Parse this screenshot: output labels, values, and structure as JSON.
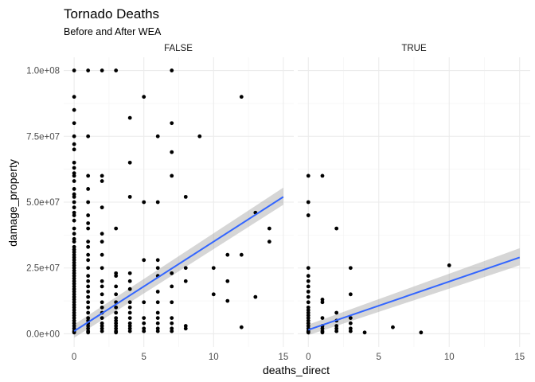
{
  "chart_data": {
    "type": "scatter",
    "title": "Tornado Deaths",
    "subtitle": "Before and After WEA",
    "xlabel": "deaths_direct",
    "ylabel": "damage_property",
    "xlim": [
      -0.75,
      15.75
    ],
    "ylim": [
      -5000000,
      105000000
    ],
    "x_ticks": [
      0,
      5,
      10,
      15
    ],
    "x_tick_labels": [
      "0",
      "5",
      "10",
      "15"
    ],
    "y_ticks": [
      0,
      25000000,
      50000000,
      75000000,
      100000000
    ],
    "y_tick_labels": [
      "0.0e+00",
      "2.5e+07",
      "5.0e+07",
      "7.5e+07",
      "1.0e+08"
    ],
    "facets": [
      {
        "label": "FALSE",
        "fit": {
          "x": [
            0,
            15
          ],
          "y": [
            1000000,
            52000000
          ],
          "se_low": [
            -1500000,
            49000000
          ],
          "se_high": [
            3500000,
            55500000
          ]
        },
        "points": [
          [
            0,
            100000000
          ],
          [
            0,
            90000000
          ],
          [
            0,
            85000000
          ],
          [
            0,
            80000000
          ],
          [
            0,
            75000000
          ],
          [
            0,
            72000000
          ],
          [
            0,
            70000000
          ],
          [
            0,
            65000000
          ],
          [
            0,
            63000000
          ],
          [
            0,
            61000000
          ],
          [
            0,
            60000000
          ],
          [
            0,
            58000000
          ],
          [
            0,
            55000000
          ],
          [
            0,
            53000000
          ],
          [
            0,
            52000000
          ],
          [
            0,
            50000000
          ],
          [
            0,
            48000000
          ],
          [
            0,
            46000000
          ],
          [
            0,
            45000000
          ],
          [
            0,
            43000000
          ],
          [
            0,
            40000000
          ],
          [
            0,
            38000000
          ],
          [
            0,
            36000000
          ],
          [
            0,
            35000000
          ],
          [
            0,
            33000000
          ],
          [
            0,
            32000000
          ],
          [
            0,
            31000000
          ],
          [
            0,
            30000000
          ],
          [
            0,
            29000000
          ],
          [
            0,
            28000000
          ],
          [
            0,
            27000000
          ],
          [
            0,
            26000000
          ],
          [
            0,
            25000000
          ],
          [
            0,
            24000000
          ],
          [
            0,
            23000000
          ],
          [
            0,
            22000000
          ],
          [
            0,
            21000000
          ],
          [
            0,
            20000000
          ],
          [
            0,
            19000000
          ],
          [
            0,
            18000000
          ],
          [
            0,
            17000000
          ],
          [
            0,
            16000000
          ],
          [
            0,
            15000000
          ],
          [
            0,
            14000000
          ],
          [
            0,
            13000000
          ],
          [
            0,
            12000000
          ],
          [
            0,
            11000000
          ],
          [
            0,
            10000000
          ],
          [
            0,
            9000000
          ],
          [
            0,
            8000000
          ],
          [
            0,
            7000000
          ],
          [
            0,
            6000000
          ],
          [
            0,
            5000000
          ],
          [
            0,
            4000000
          ],
          [
            0,
            3000000
          ],
          [
            0,
            2000000
          ],
          [
            0,
            1000000
          ],
          [
            0,
            500000
          ],
          [
            1,
            100000000
          ],
          [
            1,
            75000000
          ],
          [
            1,
            60000000
          ],
          [
            1,
            55000000
          ],
          [
            1,
            50000000
          ],
          [
            1,
            45000000
          ],
          [
            1,
            42000000
          ],
          [
            1,
            40000000
          ],
          [
            1,
            35000000
          ],
          [
            1,
            33000000
          ],
          [
            1,
            30000000
          ],
          [
            1,
            28000000
          ],
          [
            1,
            25000000
          ],
          [
            1,
            22000000
          ],
          [
            1,
            20000000
          ],
          [
            1,
            18000000
          ],
          [
            1,
            16000000
          ],
          [
            1,
            14000000
          ],
          [
            1,
            12000000
          ],
          [
            1,
            10000000
          ],
          [
            1,
            8000000
          ],
          [
            1,
            6000000
          ],
          [
            1,
            5000000
          ],
          [
            1,
            4000000
          ],
          [
            1,
            3000000
          ],
          [
            1,
            2000000
          ],
          [
            1,
            1000000
          ],
          [
            1,
            500000
          ],
          [
            2,
            100000000
          ],
          [
            2,
            60000000
          ],
          [
            2,
            58000000
          ],
          [
            2,
            48000000
          ],
          [
            2,
            38000000
          ],
          [
            2,
            35000000
          ],
          [
            2,
            30000000
          ],
          [
            2,
            25000000
          ],
          [
            2,
            20000000
          ],
          [
            2,
            18000000
          ],
          [
            2,
            15000000
          ],
          [
            2,
            12000000
          ],
          [
            2,
            10000000
          ],
          [
            2,
            8000000
          ],
          [
            2,
            6000000
          ],
          [
            2,
            4000000
          ],
          [
            2,
            3000000
          ],
          [
            2,
            2000000
          ],
          [
            2,
            1000000
          ],
          [
            3,
            100000000
          ],
          [
            3,
            40000000
          ],
          [
            3,
            23000000
          ],
          [
            3,
            22000000
          ],
          [
            3,
            18000000
          ],
          [
            3,
            15000000
          ],
          [
            3,
            12000000
          ],
          [
            3,
            10000000
          ],
          [
            3,
            8000000
          ],
          [
            3,
            6000000
          ],
          [
            3,
            5000000
          ],
          [
            3,
            4000000
          ],
          [
            3,
            3000000
          ],
          [
            3,
            2000000
          ],
          [
            3,
            1000000
          ],
          [
            3,
            500000
          ],
          [
            4,
            82000000
          ],
          [
            4,
            65000000
          ],
          [
            4,
            52000000
          ],
          [
            4,
            23000000
          ],
          [
            4,
            20000000
          ],
          [
            4,
            17000000
          ],
          [
            4,
            12000000
          ],
          [
            4,
            10000000
          ],
          [
            4,
            8000000
          ],
          [
            4,
            6000000
          ],
          [
            4,
            4000000
          ],
          [
            4,
            3000000
          ],
          [
            4,
            2000000
          ],
          [
            4,
            1000000
          ],
          [
            5,
            90000000
          ],
          [
            5,
            50000000
          ],
          [
            5,
            28000000
          ],
          [
            5,
            12000000
          ],
          [
            5,
            6000000
          ],
          [
            5,
            4000000
          ],
          [
            5,
            2000000
          ],
          [
            5,
            1000000
          ],
          [
            6,
            75000000
          ],
          [
            6,
            50000000
          ],
          [
            6,
            28000000
          ],
          [
            6,
            25000000
          ],
          [
            6,
            22000000
          ],
          [
            6,
            16000000
          ],
          [
            6,
            12000000
          ],
          [
            6,
            8000000
          ],
          [
            6,
            6000000
          ],
          [
            6,
            4000000
          ],
          [
            6,
            2000000
          ],
          [
            6,
            1000000
          ],
          [
            7,
            100000000
          ],
          [
            7,
            80000000
          ],
          [
            7,
            69000000
          ],
          [
            7,
            60000000
          ],
          [
            7,
            23000000
          ],
          [
            7,
            18000000
          ],
          [
            7,
            12000000
          ],
          [
            7,
            6000000
          ],
          [
            7,
            4000000
          ],
          [
            7,
            2000000
          ],
          [
            7,
            1000000
          ],
          [
            8,
            52000000
          ],
          [
            8,
            25000000
          ],
          [
            8,
            20000000
          ],
          [
            8,
            3000000
          ],
          [
            8,
            2000000
          ],
          [
            9,
            75000000
          ],
          [
            10,
            25000000
          ],
          [
            10,
            15000000
          ],
          [
            11,
            30000000
          ],
          [
            11,
            20000000
          ],
          [
            11,
            12500000
          ],
          [
            12,
            90000000
          ],
          [
            12,
            30000000
          ],
          [
            12,
            2500000
          ],
          [
            13,
            46000000
          ],
          [
            13,
            14000000
          ],
          [
            14,
            40000000
          ],
          [
            14,
            35000000
          ]
        ]
      },
      {
        "label": "TRUE",
        "fit": {
          "x": [
            0,
            15
          ],
          "y": [
            1500000,
            29000000
          ],
          "se_low": [
            -500000,
            26000000
          ],
          "se_high": [
            3500000,
            32500000
          ]
        },
        "points": [
          [
            0,
            60000000
          ],
          [
            0,
            50000000
          ],
          [
            0,
            45000000
          ],
          [
            0,
            25000000
          ],
          [
            0,
            22000000
          ],
          [
            0,
            20000000
          ],
          [
            0,
            18000000
          ],
          [
            0,
            16000000
          ],
          [
            0,
            14000000
          ],
          [
            0,
            12000000
          ],
          [
            0,
            10000000
          ],
          [
            0,
            9000000
          ],
          [
            0,
            8000000
          ],
          [
            0,
            7000000
          ],
          [
            0,
            6000000
          ],
          [
            0,
            5000000
          ],
          [
            0,
            4000000
          ],
          [
            0,
            3000000
          ],
          [
            0,
            2000000
          ],
          [
            0,
            1000000
          ],
          [
            0,
            500000
          ],
          [
            1,
            60000000
          ],
          [
            1,
            13000000
          ],
          [
            1,
            12000000
          ],
          [
            1,
            6000000
          ],
          [
            1,
            3000000
          ],
          [
            1,
            2000000
          ],
          [
            1,
            1000000
          ],
          [
            1,
            500000
          ],
          [
            2,
            40000000
          ],
          [
            2,
            8000000
          ],
          [
            2,
            5000000
          ],
          [
            2,
            3000000
          ],
          [
            2,
            2000000
          ],
          [
            2,
            1000000
          ],
          [
            3,
            25000000
          ],
          [
            3,
            15000000
          ],
          [
            3,
            6000000
          ],
          [
            3,
            4000000
          ],
          [
            3,
            2000000
          ],
          [
            3,
            1000000
          ],
          [
            4,
            500000
          ],
          [
            6,
            2500000
          ],
          [
            8,
            500000
          ],
          [
            10,
            26000000
          ]
        ]
      }
    ]
  }
}
